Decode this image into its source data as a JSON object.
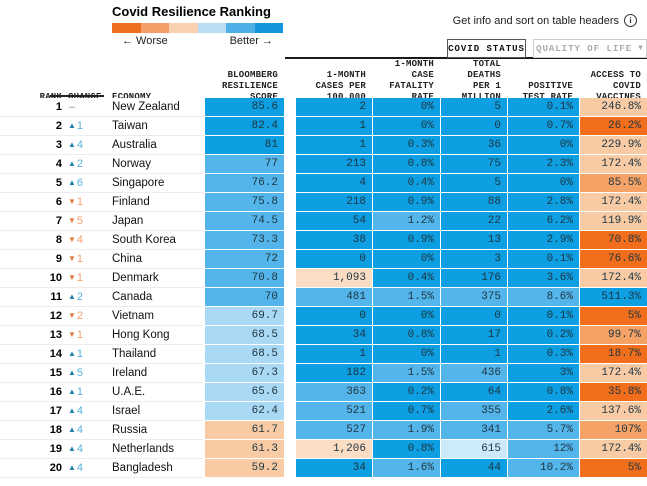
{
  "title": "Covid Resilience Ranking",
  "legend": {
    "worse_label": "← Worse",
    "better_label": "Better →",
    "colors": [
      "#ec6e1e",
      "#f2a067",
      "#f9d0b0",
      "#b9ddf3",
      "#4cb0e7",
      "#1495dc"
    ]
  },
  "info_hint": "Get info and sort on table headers",
  "info_icon": "i",
  "tabs": {
    "covid_status": "COVID STATUS",
    "quality_of_life": "QUALITY OF LIFE",
    "quality_dropdown_icon": "▼"
  },
  "palette": {
    "b3": "#0d9fe1",
    "b2": "#53b5ea",
    "b1": "#a9d9f4",
    "b0": "#cdeafa",
    "o0": "#fbddc3",
    "o1": "#f8cba5",
    "o2": "#f4a266",
    "o3": "#f16f1c"
  },
  "chart_data": {
    "type": "table",
    "title": "Covid Resilience Ranking",
    "columns": [
      "RANK",
      "CHANGE",
      "ECONOMY",
      "BLOOMBERG RESILIENCE SCORE",
      "1-MONTH CASES PER 100,000",
      "1-MONTH CASE FATALITY RATE",
      "TOTAL DEATHS PER 1 MILLION",
      "POSITIVE TEST RATE",
      "ACCESS TO COVID VACCINES"
    ],
    "header_display": {
      "rank": "RANK",
      "change": "CHANGE",
      "economy": "ECONOMY",
      "score": "BLOOMBERG\nRESILIENCE\nSCORE",
      "cases": "1-MONTH\nCASES PER\n100,000",
      "fatality": "1-MONTH CASE\nFATALITY\nRATE",
      "deaths": "TOTAL DEATHS\nPER 1\nMILLION",
      "positive": "POSITIVE\nTEST RATE",
      "vaccines": "ACCESS TO\nCOVID\nVACCINES"
    },
    "rows": [
      {
        "rank": "1",
        "change_dir": "none",
        "change": "–",
        "economy": "New Zealand",
        "score": "85.6",
        "score_c": "b3",
        "cases": "2",
        "cases_c": "b3",
        "fatality": "0%",
        "fatality_c": "b3",
        "deaths": "5",
        "deaths_c": "b3",
        "positive": "0.1%",
        "positive_c": "b3",
        "vaccines": "246.8%",
        "vaccines_c": "o1"
      },
      {
        "rank": "2",
        "change_dir": "up",
        "change": "1",
        "economy": "Taiwan",
        "score": "82.4",
        "score_c": "b3",
        "cases": "1",
        "cases_c": "b3",
        "fatality": "0%",
        "fatality_c": "b3",
        "deaths": "0",
        "deaths_c": "b3",
        "positive": "0.7%",
        "positive_c": "b3",
        "vaccines": "26.2%",
        "vaccines_c": "o3"
      },
      {
        "rank": "3",
        "change_dir": "up",
        "change": "4",
        "economy": "Australia",
        "score": "81",
        "score_c": "b3",
        "cases": "1",
        "cases_c": "b3",
        "fatality": "0.3%",
        "fatality_c": "b3",
        "deaths": "36",
        "deaths_c": "b3",
        "positive": "0%",
        "positive_c": "b3",
        "vaccines": "229.9%",
        "vaccines_c": "o1"
      },
      {
        "rank": "4",
        "change_dir": "up",
        "change": "2",
        "economy": "Norway",
        "score": "77",
        "score_c": "b2",
        "cases": "213",
        "cases_c": "b3",
        "fatality": "0.8%",
        "fatality_c": "b3",
        "deaths": "75",
        "deaths_c": "b3",
        "positive": "2.3%",
        "positive_c": "b3",
        "vaccines": "172.4%",
        "vaccines_c": "o1"
      },
      {
        "rank": "5",
        "change_dir": "up",
        "change": "6",
        "economy": "Singapore",
        "score": "76.2",
        "score_c": "b2",
        "cases": "4",
        "cases_c": "b3",
        "fatality": "0.4%",
        "fatality_c": "b3",
        "deaths": "5",
        "deaths_c": "b3",
        "positive": "0%",
        "positive_c": "b3",
        "vaccines": "85.5%",
        "vaccines_c": "o2"
      },
      {
        "rank": "6",
        "change_dir": "down",
        "change": "1",
        "economy": "Finland",
        "score": "75.8",
        "score_c": "b2",
        "cases": "218",
        "cases_c": "b3",
        "fatality": "0.9%",
        "fatality_c": "b3",
        "deaths": "88",
        "deaths_c": "b3",
        "positive": "2.8%",
        "positive_c": "b3",
        "vaccines": "172.4%",
        "vaccines_c": "o1"
      },
      {
        "rank": "7",
        "change_dir": "down",
        "change": "5",
        "economy": "Japan",
        "score": "74.5",
        "score_c": "b2",
        "cases": "54",
        "cases_c": "b3",
        "fatality": "1.2%",
        "fatality_c": "b2",
        "deaths": "22",
        "deaths_c": "b3",
        "positive": "6.2%",
        "positive_c": "b3",
        "vaccines": "119.9%",
        "vaccines_c": "o1"
      },
      {
        "rank": "8",
        "change_dir": "down",
        "change": "4",
        "economy": "South Korea",
        "score": "73.3",
        "score_c": "b2",
        "cases": "38",
        "cases_c": "b3",
        "fatality": "0.9%",
        "fatality_c": "b3",
        "deaths": "13",
        "deaths_c": "b3",
        "positive": "2.9%",
        "positive_c": "b3",
        "vaccines": "70.8%",
        "vaccines_c": "o3"
      },
      {
        "rank": "9",
        "change_dir": "down",
        "change": "1",
        "economy": "China",
        "score": "72",
        "score_c": "b2",
        "cases": "0",
        "cases_c": "b3",
        "fatality": "0%",
        "fatality_c": "b3",
        "deaths": "3",
        "deaths_c": "b3",
        "positive": "0.1%",
        "positive_c": "b3",
        "vaccines": "76.6%",
        "vaccines_c": "o3"
      },
      {
        "rank": "10",
        "change_dir": "down",
        "change": "1",
        "economy": "Denmark",
        "score": "70.8",
        "score_c": "b2",
        "cases": "1,093",
        "cases_c": "o0",
        "fatality": "0.4%",
        "fatality_c": "b3",
        "deaths": "176",
        "deaths_c": "b3",
        "positive": "3.6%",
        "positive_c": "b3",
        "vaccines": "172.4%",
        "vaccines_c": "o1"
      },
      {
        "rank": "11",
        "change_dir": "up",
        "change": "2",
        "economy": "Canada",
        "score": "70",
        "score_c": "b2",
        "cases": "481",
        "cases_c": "b2",
        "fatality": "1.5%",
        "fatality_c": "b2",
        "deaths": "375",
        "deaths_c": "b2",
        "positive": "8.6%",
        "positive_c": "b2",
        "vaccines": "511.3%",
        "vaccines_c": "b3"
      },
      {
        "rank": "12",
        "change_dir": "down",
        "change": "2",
        "economy": "Vietnam",
        "score": "69.7",
        "score_c": "b1",
        "cases": "0",
        "cases_c": "b3",
        "fatality": "0%",
        "fatality_c": "b3",
        "deaths": "0",
        "deaths_c": "b3",
        "positive": "0.1%",
        "positive_c": "b3",
        "vaccines": "5%",
        "vaccines_c": "o3"
      },
      {
        "rank": "13",
        "change_dir": "down",
        "change": "1",
        "economy": "Hong Kong",
        "score": "68.5",
        "score_c": "b1",
        "cases": "34",
        "cases_c": "b3",
        "fatality": "0.8%",
        "fatality_c": "b3",
        "deaths": "17",
        "deaths_c": "b3",
        "positive": "0.2%",
        "positive_c": "b3",
        "vaccines": "99.7%",
        "vaccines_c": "o2"
      },
      {
        "rank": "14",
        "change_dir": "up",
        "change": "1",
        "economy": "Thailand",
        "score": "68.5",
        "score_c": "b1",
        "cases": "1",
        "cases_c": "b3",
        "fatality": "0%",
        "fatality_c": "b3",
        "deaths": "1",
        "deaths_c": "b3",
        "positive": "0.3%",
        "positive_c": "b3",
        "vaccines": "18.7%",
        "vaccines_c": "o3"
      },
      {
        "rank": "15",
        "change_dir": "up",
        "change": "5",
        "economy": "Ireland",
        "score": "67.3",
        "score_c": "b1",
        "cases": "182",
        "cases_c": "b3",
        "fatality": "1.5%",
        "fatality_c": "b2",
        "deaths": "436",
        "deaths_c": "b2",
        "positive": "3%",
        "positive_c": "b3",
        "vaccines": "172.4%",
        "vaccines_c": "o1"
      },
      {
        "rank": "16",
        "change_dir": "up",
        "change": "1",
        "economy": "U.A.E.",
        "score": "65.6",
        "score_c": "b1",
        "cases": "363",
        "cases_c": "b2",
        "fatality": "0.2%",
        "fatality_c": "b3",
        "deaths": "64",
        "deaths_c": "b3",
        "positive": "0.8%",
        "positive_c": "b3",
        "vaccines": "35.8%",
        "vaccines_c": "o3"
      },
      {
        "rank": "17",
        "change_dir": "up",
        "change": "4",
        "economy": "Israel",
        "score": "62.4",
        "score_c": "b1",
        "cases": "521",
        "cases_c": "b2",
        "fatality": "0.7%",
        "fatality_c": "b3",
        "deaths": "355",
        "deaths_c": "b2",
        "positive": "2.6%",
        "positive_c": "b3",
        "vaccines": "137.6%",
        "vaccines_c": "o1"
      },
      {
        "rank": "18",
        "change_dir": "up",
        "change": "4",
        "economy": "Russia",
        "score": "61.7",
        "score_c": "o1",
        "cases": "527",
        "cases_c": "b2",
        "fatality": "1.9%",
        "fatality_c": "b2",
        "deaths": "341",
        "deaths_c": "b2",
        "positive": "5.7%",
        "positive_c": "b2",
        "vaccines": "107%",
        "vaccines_c": "o2"
      },
      {
        "rank": "19",
        "change_dir": "up",
        "change": "4",
        "economy": "Netherlands",
        "score": "61.3",
        "score_c": "o1",
        "cases": "1,206",
        "cases_c": "o0",
        "fatality": "0.8%",
        "fatality_c": "b3",
        "deaths": "615",
        "deaths_c": "b0",
        "positive": "12%",
        "positive_c": "b2",
        "vaccines": "172.4%",
        "vaccines_c": "o1"
      },
      {
        "rank": "20",
        "change_dir": "up",
        "change": "4",
        "economy": "Bangladesh",
        "score": "59.2",
        "score_c": "o1",
        "cases": "34",
        "cases_c": "b3",
        "fatality": "1.6%",
        "fatality_c": "b2",
        "deaths": "44",
        "deaths_c": "b3",
        "positive": "10.2%",
        "positive_c": "b2",
        "vaccines": "5%",
        "vaccines_c": "o3"
      }
    ]
  }
}
